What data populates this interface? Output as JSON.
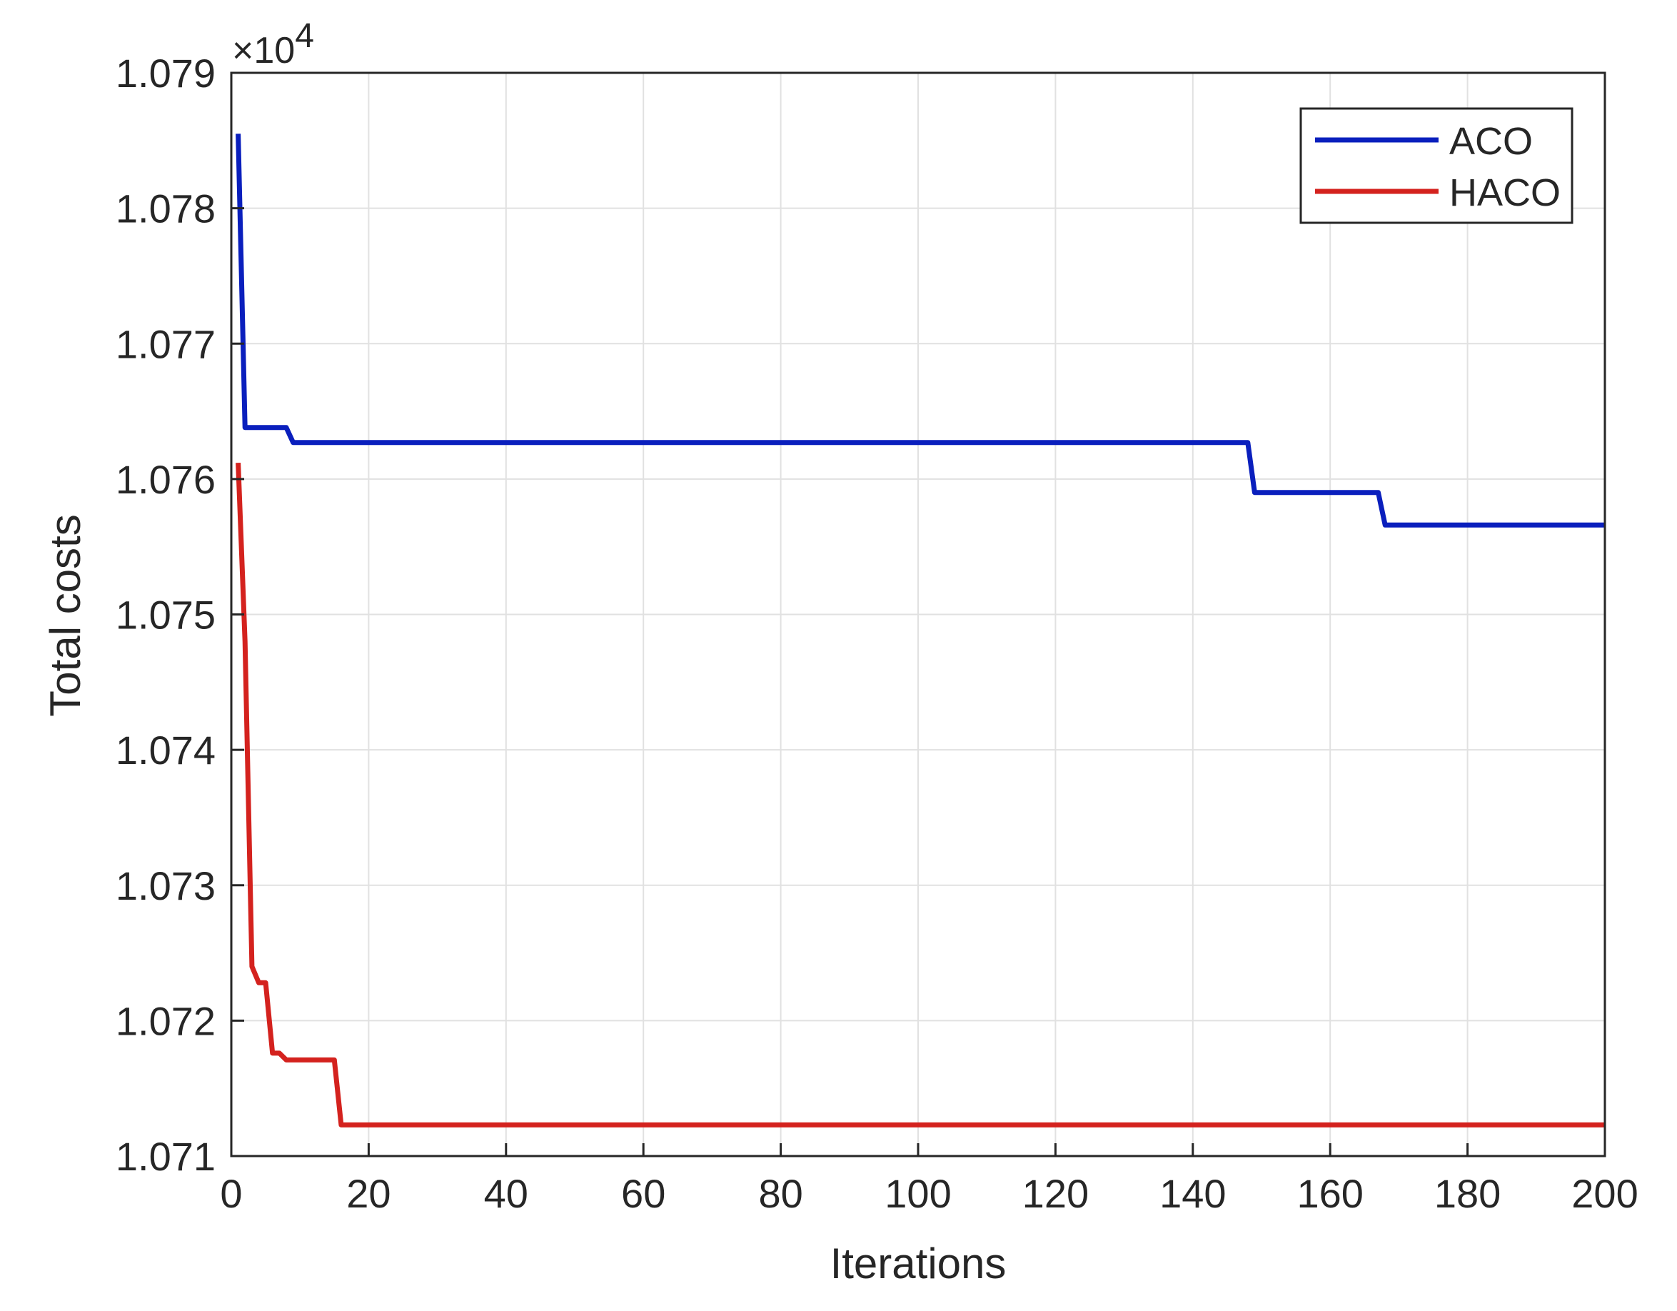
{
  "chart_data": {
    "type": "line",
    "xlabel": "Iterations",
    "ylabel": "Total costs",
    "xlim": [
      0,
      200
    ],
    "ylim": [
      1.071,
      1.079
    ],
    "y_multiplier_label": "×10",
    "y_multiplier_exponent": "4",
    "x_ticks": [
      "0",
      "20",
      "40",
      "60",
      "80",
      "100",
      "120",
      "140",
      "160",
      "180",
      "200"
    ],
    "y_ticks": [
      "1.071",
      "1.072",
      "1.073",
      "1.074",
      "1.075",
      "1.076",
      "1.077",
      "1.078",
      "1.079"
    ],
    "grid": true,
    "legend_position": "top-right",
    "series": [
      {
        "name": "ACO",
        "color": "#0a1fbd",
        "points": [
          [
            1,
            1.07855
          ],
          [
            2,
            1.07638
          ],
          [
            8,
            1.07638
          ],
          [
            9,
            1.07627
          ],
          [
            148,
            1.07627
          ],
          [
            149,
            1.0759
          ],
          [
            167,
            1.0759
          ],
          [
            168,
            1.07566
          ],
          [
            200,
            1.07566
          ]
        ]
      },
      {
        "name": "HACO",
        "color": "#d4221e",
        "points": [
          [
            1,
            1.07612
          ],
          [
            2,
            1.0748
          ],
          [
            3,
            1.0724
          ],
          [
            4,
            1.07228
          ],
          [
            5,
            1.07228
          ],
          [
            6,
            1.07176
          ],
          [
            7,
            1.07176
          ],
          [
            8,
            1.07171
          ],
          [
            15,
            1.07171
          ],
          [
            16,
            1.07123
          ],
          [
            200,
            1.07123
          ]
        ]
      }
    ]
  }
}
